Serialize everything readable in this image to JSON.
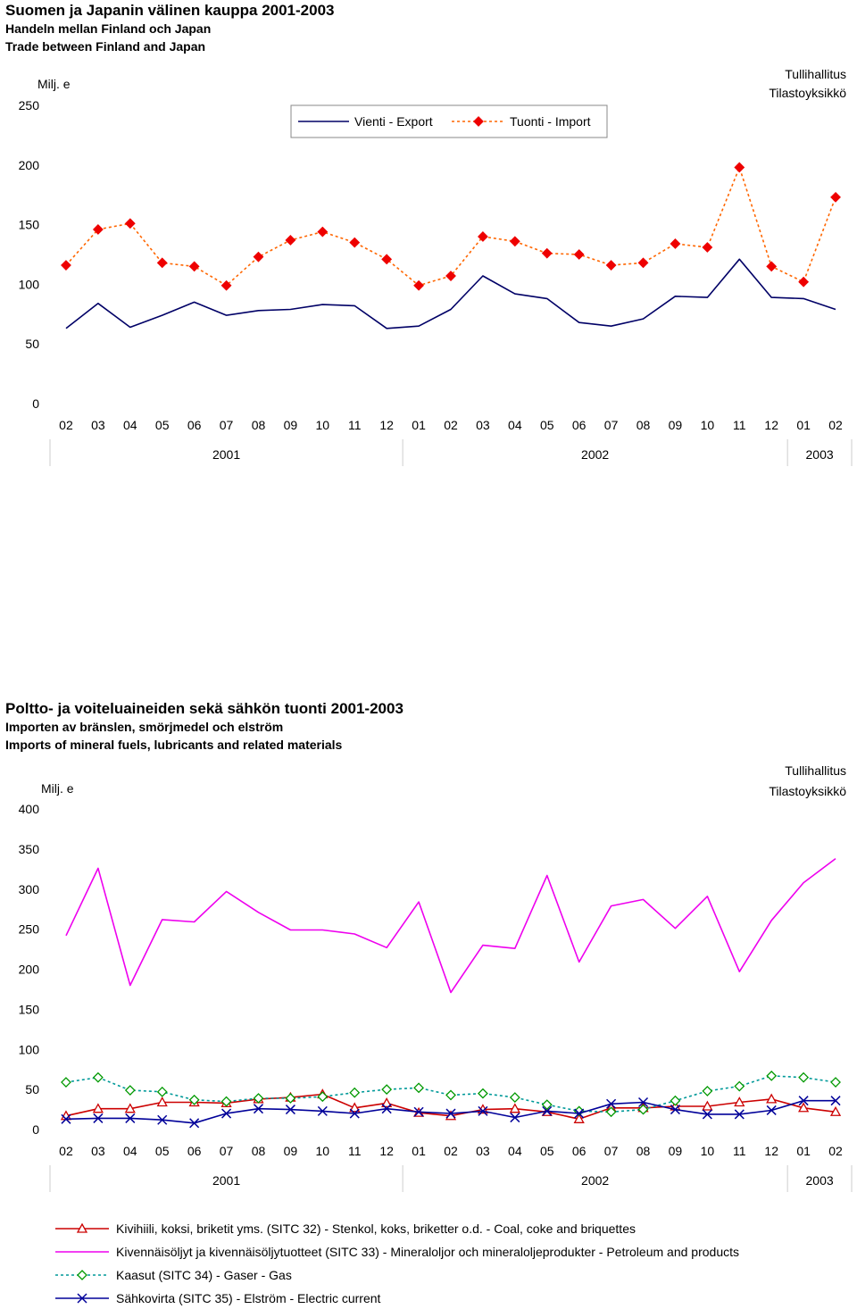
{
  "chart_data": [
    {
      "type": "line",
      "title": "Suomen ja Japanin välinen kauppa 2001-2003",
      "subtitle_sv": "Handeln mellan Finland och Japan",
      "subtitle_en": "Trade between Finland and Japan",
      "ylabel": "Milj. e",
      "source_line1": "Tullihallitus",
      "source_line2": "Tilastoyksikkö",
      "ylim": [
        0,
        250
      ],
      "yticks": [
        0,
        50,
        100,
        150,
        200,
        250
      ],
      "categories": [
        "02",
        "03",
        "04",
        "05",
        "06",
        "07",
        "08",
        "09",
        "10",
        "11",
        "12",
        "01",
        "02",
        "03",
        "04",
        "05",
        "06",
        "07",
        "08",
        "09",
        "10",
        "11",
        "12",
        "01",
        "02"
      ],
      "years": [
        {
          "label": "2001",
          "start": 0,
          "end": 10
        },
        {
          "label": "2002",
          "start": 11,
          "end": 22
        },
        {
          "label": "2003",
          "start": 23,
          "end": 24
        }
      ],
      "legend_placement": "top-center",
      "series": [
        {
          "name": "Vienti - Export",
          "color": "#000066",
          "dashed": false,
          "marker": "none",
          "values": [
            63,
            84,
            64,
            74,
            85,
            74,
            78,
            79,
            83,
            82,
            63,
            65,
            79,
            107,
            92,
            88,
            68,
            65,
            71,
            90,
            89,
            121,
            89,
            88,
            79
          ]
        },
        {
          "name": "Tuonti - Import",
          "color": "#ff6600",
          "markerColor": "#ee0000",
          "dashed": true,
          "marker": "diamond",
          "values": [
            116,
            146,
            151,
            118,
            115,
            99,
            123,
            137,
            144,
            135,
            121,
            99,
            107,
            140,
            136,
            126,
            125,
            116,
            118,
            134,
            131,
            198,
            115,
            102,
            173
          ]
        }
      ]
    },
    {
      "type": "line",
      "title": "Poltto- ja voiteluaineiden sekä sähkön tuonti 2001-2003",
      "subtitle_sv": "Importen av bränslen, smörjmedel och elström",
      "subtitle_en": "Imports of mineral fuels, lubricants and related materials",
      "ylabel": "Milj. e",
      "source_line1": "Tullihallitus",
      "source_line2": "Tilastoyksikkö",
      "ylim": [
        0,
        400
      ],
      "yticks": [
        0,
        50,
        100,
        150,
        200,
        250,
        300,
        350,
        400
      ],
      "categories": [
        "02",
        "03",
        "04",
        "05",
        "06",
        "07",
        "08",
        "09",
        "10",
        "11",
        "12",
        "01",
        "02",
        "03",
        "04",
        "05",
        "06",
        "07",
        "08",
        "09",
        "10",
        "11",
        "12",
        "01",
        "02"
      ],
      "years": [
        {
          "label": "2001",
          "start": 0,
          "end": 10
        },
        {
          "label": "2002",
          "start": 11,
          "end": 22
        },
        {
          "label": "2003",
          "start": 23,
          "end": 24
        }
      ],
      "legend_placement": "bottom",
      "series": [
        {
          "name": "Kivihiili, koksi, briketit yms. (SITC 32) - Stenkol, koks, briketter o.d. - Coal, coke and briquettes",
          "color": "#cc0000",
          "dashed": false,
          "marker": "triangle",
          "values": [
            17,
            26,
            26,
            34,
            34,
            33,
            38,
            40,
            44,
            27,
            33,
            21,
            17,
            25,
            26,
            22,
            13,
            27,
            27,
            29,
            29,
            34,
            38,
            27,
            22
          ]
        },
        {
          "name": "Kivennäisöljyt ja kivennäisöljytuotteet (SITC 33) - Mineraloljor och mineraloljeprodukter - Petroleum and products",
          "color": "#ee00ee",
          "dashed": false,
          "marker": "none",
          "values": [
            242,
            326,
            180,
            262,
            259,
            297,
            271,
            249,
            249,
            244,
            227,
            284,
            171,
            230,
            226,
            317,
            209,
            279,
            287,
            251,
            291,
            197,
            261,
            308,
            338
          ]
        },
        {
          "name": "Kaasut (SITC 34) - Gaser - Gas",
          "color": "#009999",
          "markerColor": "#009900",
          "dashed": true,
          "marker": "diamond",
          "values": [
            59,
            65,
            49,
            47,
            37,
            35,
            39,
            39,
            41,
            46,
            50,
            52,
            43,
            45,
            40,
            31,
            23,
            22,
            25,
            36,
            48,
            54,
            67,
            65,
            59
          ]
        },
        {
          "name": "Sähkovirta (SITC 35) - Elström - Electric current",
          "color": "#000099",
          "dashed": false,
          "marker": "x",
          "values": [
            13,
            14,
            14,
            12,
            8,
            20,
            26,
            25,
            23,
            20,
            26,
            22,
            20,
            23,
            15,
            23,
            20,
            32,
            34,
            25,
            19,
            19,
            24,
            36,
            36
          ]
        }
      ]
    }
  ]
}
